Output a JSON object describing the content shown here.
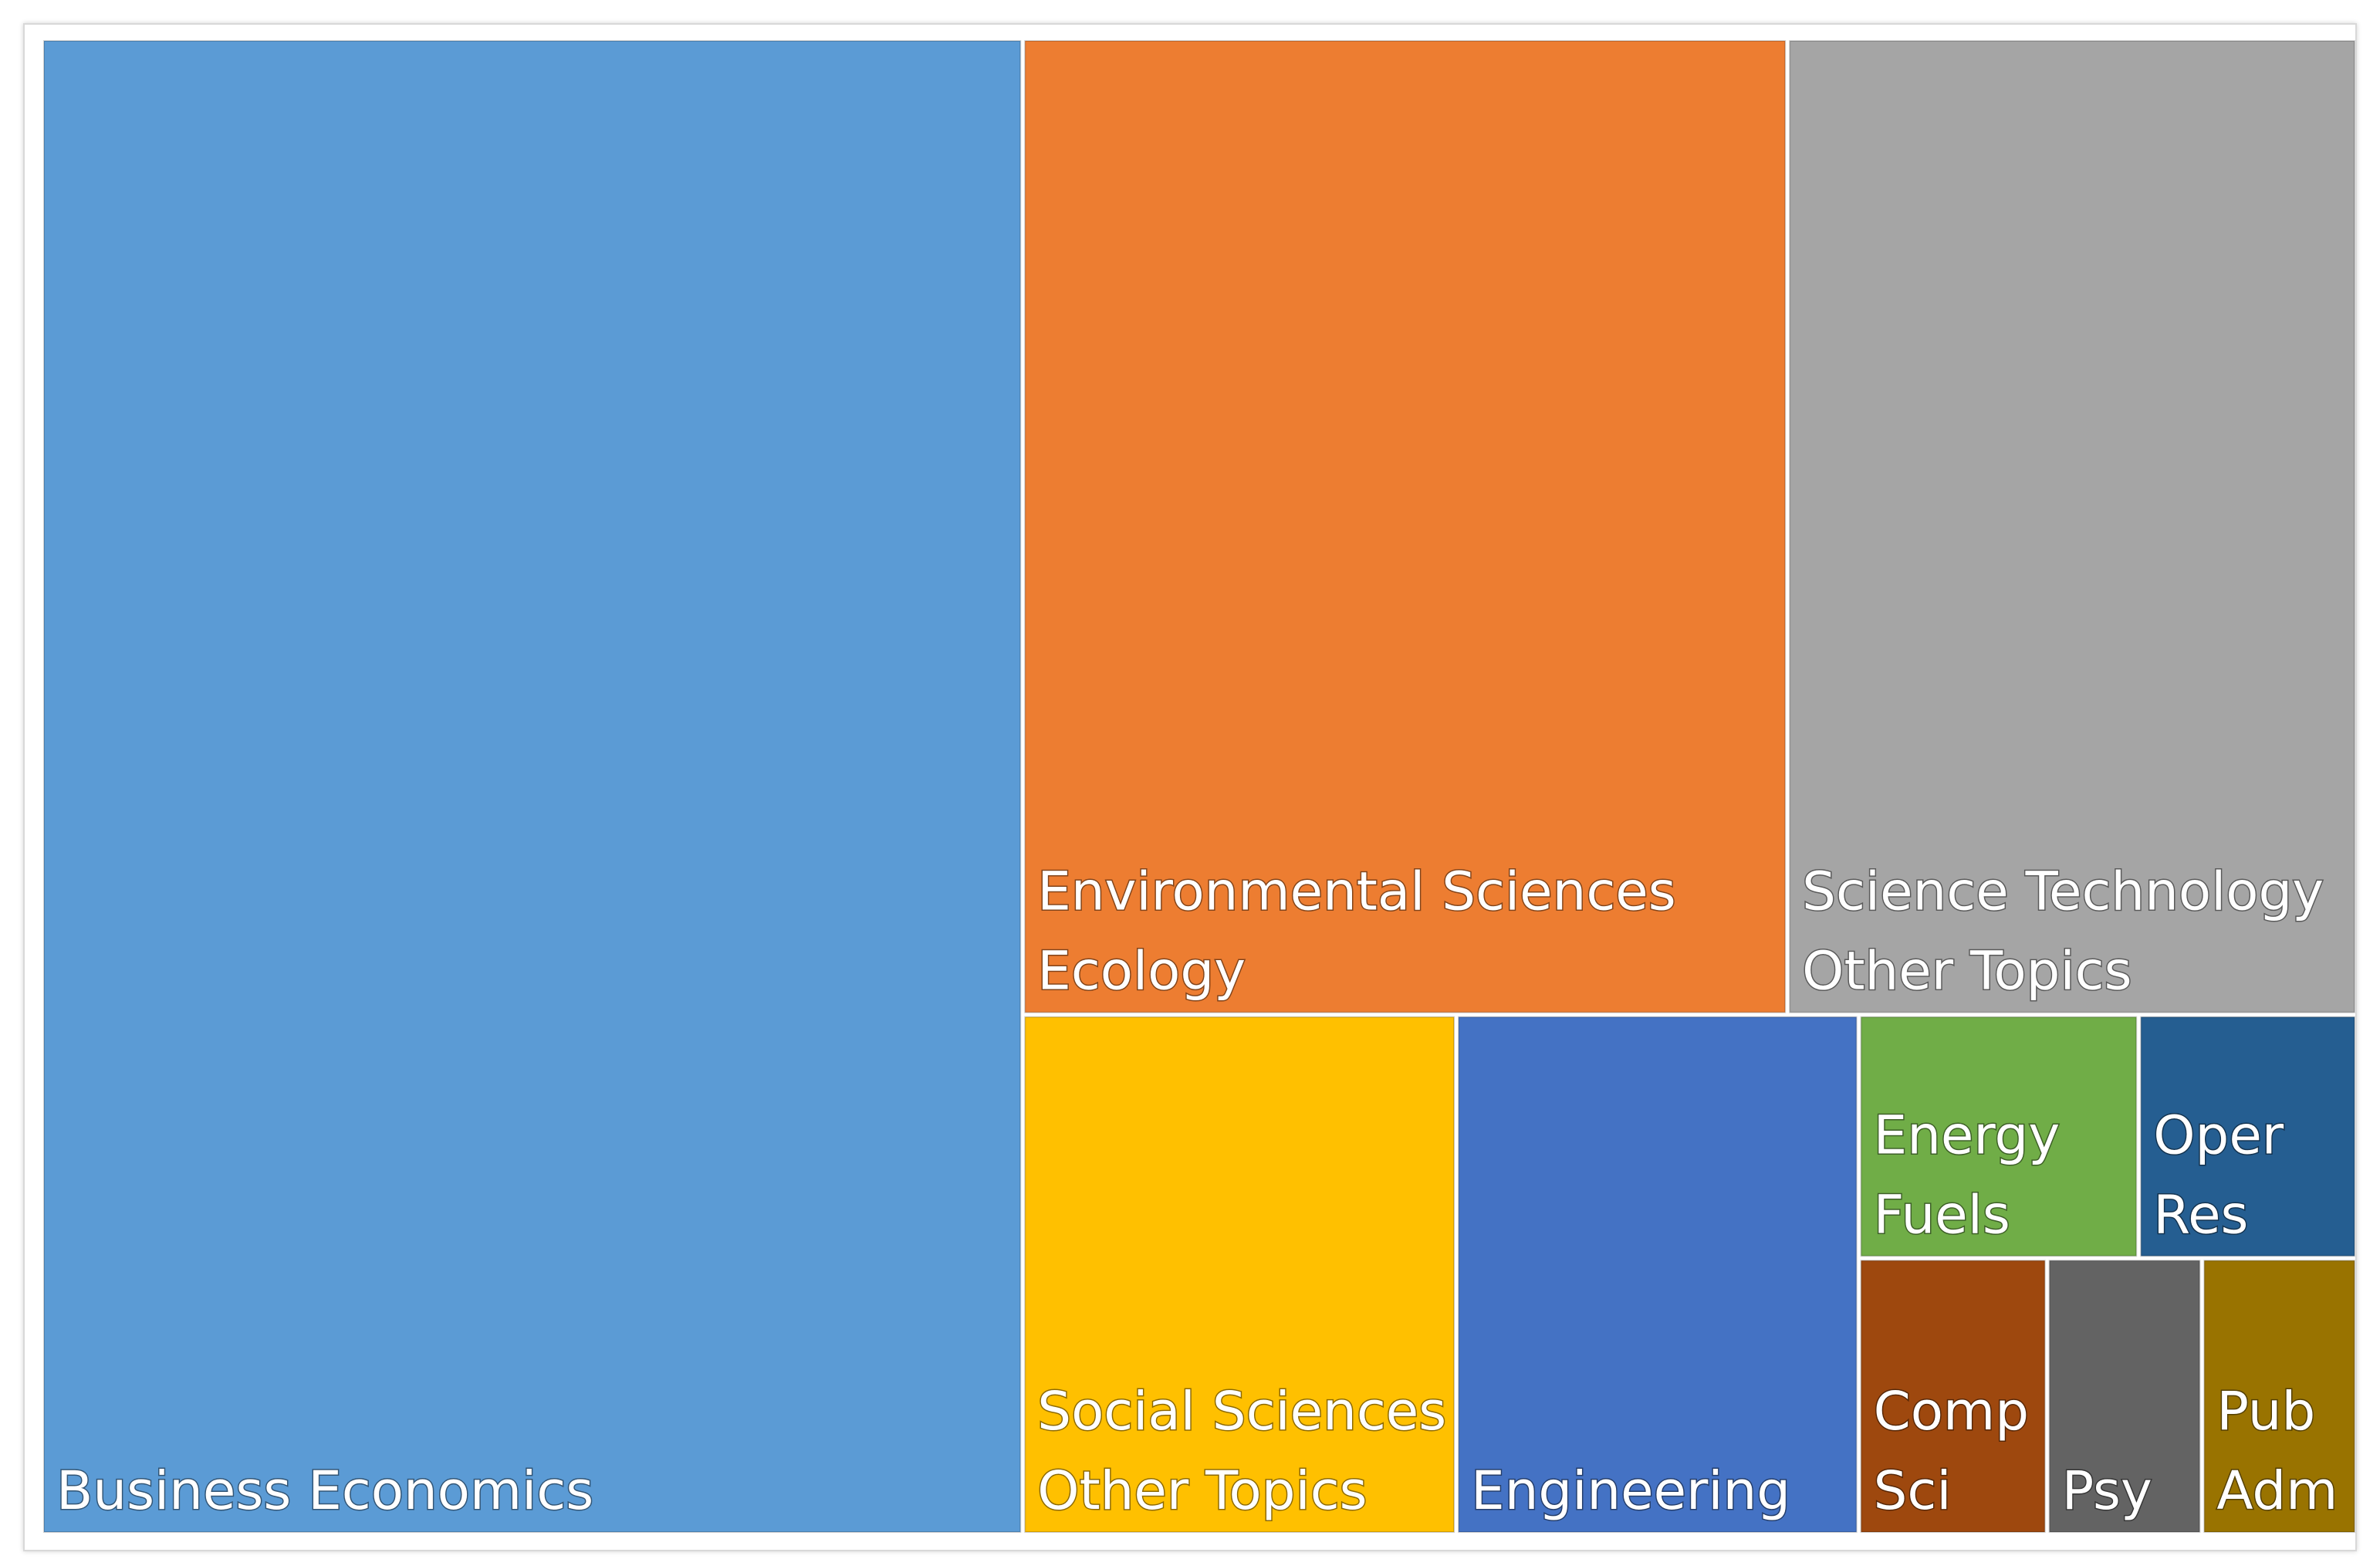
{
  "chart_data": {
    "type": "treemap",
    "title": "",
    "cells": [
      {
        "name": "Business Economics",
        "lines": [
          "Business Economics"
        ],
        "value": 1270,
        "color": "#5b9bd5"
      },
      {
        "name": "Environmental Sciences Ecology",
        "lines": [
          "Environmental Sciences",
          "Ecology"
        ],
        "value": 646,
        "color": "#ed7d31"
      },
      {
        "name": "Science Technology Other Topics",
        "lines": [
          "Science Technology",
          "Other Topics"
        ],
        "value": 481,
        "color": "#a5a5a5"
      },
      {
        "name": "Social Sciences Other Topics",
        "lines": [
          "Social Sciences",
          "Other Topics"
        ],
        "value": 195,
        "color": "#ffc000"
      },
      {
        "name": "Engineering",
        "lines": [
          "Engineering"
        ],
        "value": 181,
        "color": "#4472c4"
      },
      {
        "name": "Energy Fuels",
        "lines": [
          "Energy",
          "Fuels"
        ],
        "value": 59,
        "color": "#70ad47"
      },
      {
        "name": "Oper Res",
        "lines": [
          "Oper",
          "Res"
        ],
        "value": 46,
        "color": "#255e91"
      },
      {
        "name": "Comp Sci",
        "lines": [
          "Comp",
          "Sci"
        ],
        "value": 45,
        "color": "#9e480e"
      },
      {
        "name": "Psy",
        "lines": [
          "Psy"
        ],
        "value": 37,
        "color": "#636363"
      },
      {
        "name": "Pub Adm",
        "lines": [
          "Pub",
          "Adm"
        ],
        "value": 37,
        "color": "#997300"
      }
    ]
  }
}
